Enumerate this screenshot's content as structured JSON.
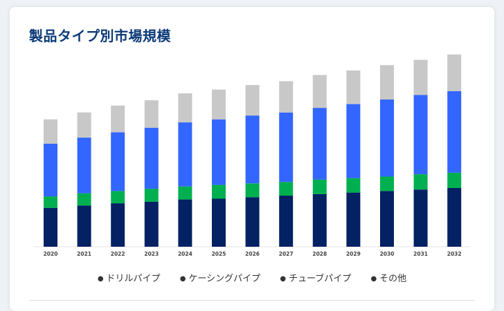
{
  "page": {
    "title": "製品タイプ別市場規模"
  },
  "chart_data": {
    "type": "bar",
    "stacked": true,
    "title": "製品タイプ別市場規模",
    "categories": [
      "2020",
      "2021",
      "2022",
      "2023",
      "2024",
      "2025",
      "2026",
      "2027",
      "2028",
      "2029",
      "2030",
      "2031",
      "2032"
    ],
    "series": [
      {
        "name": "ドリルパイプ",
        "color": "#032163",
        "values": [
          51,
          54,
          57,
          59,
          62,
          63,
          65,
          67,
          69,
          71,
          73,
          75,
          77
        ]
      },
      {
        "name": "ケーシングパイプ",
        "color": "#00b050",
        "values": [
          15,
          16,
          16,
          17,
          17,
          18,
          18,
          18,
          19,
          19,
          19,
          20,
          20
        ]
      },
      {
        "name": "チューブパイプ",
        "color": "#3366ff",
        "values": [
          69,
          73,
          77,
          80,
          84,
          86,
          89,
          91,
          94,
          97,
          101,
          104,
          107
        ]
      },
      {
        "name": "その他",
        "color": "#c8c8c8",
        "values": [
          32,
          33,
          35,
          36,
          38,
          39,
          40,
          41,
          43,
          44,
          45,
          46,
          48
        ]
      }
    ],
    "xlabel": "",
    "ylabel": "",
    "ylim": [
      0,
      260
    ],
    "grid": false,
    "legend_position": "bottom",
    "legend": [
      "ドリルパイプ",
      "ケーシングパイプ",
      "チューブパイプ",
      "その他"
    ]
  }
}
